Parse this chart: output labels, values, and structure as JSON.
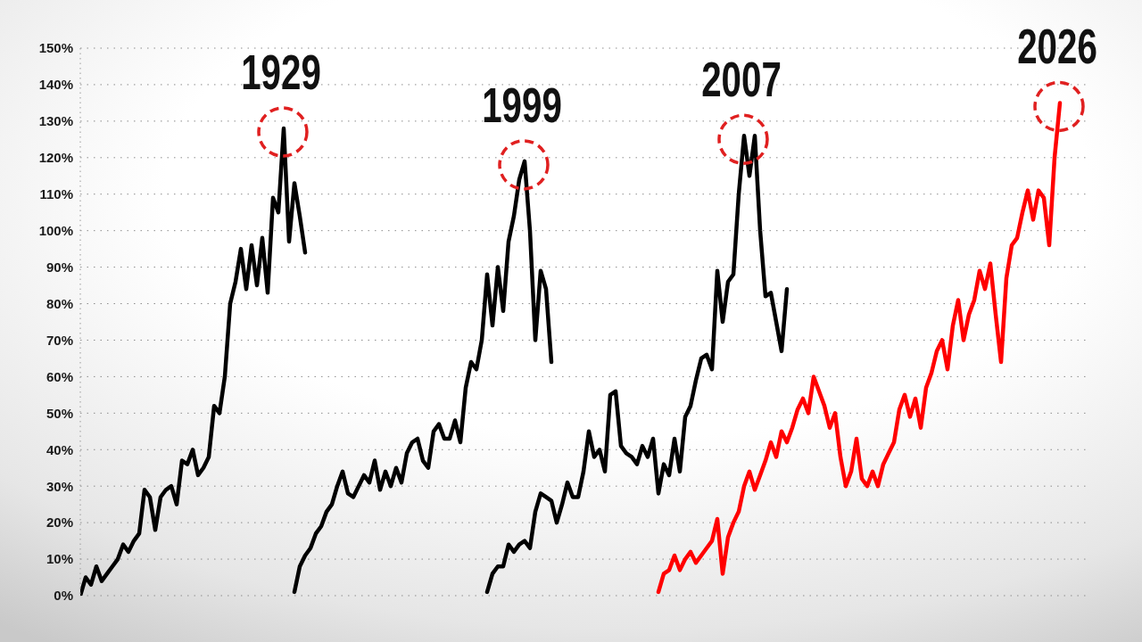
{
  "chart_data": {
    "type": "line",
    "categories": [
      null,
      null,
      null,
      null,
      null,
      null,
      null,
      null,
      null,
      null,
      null,
      null,
      null,
      null,
      null,
      null,
      null,
      null,
      null,
      null,
      null,
      null,
      null,
      null,
      null,
      null,
      null,
      null,
      null,
      null,
      null,
      null,
      null,
      null,
      null,
      null,
      null,
      null,
      null,
      null,
      null,
      null,
      null,
      null,
      null,
      null,
      null,
      null,
      null,
      null,
      null,
      null,
      null,
      null,
      null,
      null,
      null,
      null,
      null,
      null,
      null,
      null,
      null,
      null,
      null,
      null,
      null,
      null,
      null,
      null,
      null,
      null,
      null,
      null,
      null,
      null,
      null,
      null,
      null,
      null,
      null,
      null,
      null,
      null,
      null,
      null,
      null,
      null,
      null,
      null,
      null,
      null,
      null,
      null,
      null,
      null,
      null,
      null,
      null,
      null,
      null,
      null,
      null,
      null,
      null,
      null,
      null,
      null,
      null,
      null,
      null,
      null,
      null,
      null,
      null,
      null,
      null,
      null,
      null,
      null,
      null,
      null,
      null,
      null,
      null,
      null,
      null,
      null,
      null,
      null,
      null,
      null,
      null,
      null,
      null,
      null,
      null,
      null,
      null,
      null,
      null,
      null,
      null,
      null,
      null,
      null,
      null,
      null,
      null,
      null,
      null,
      null,
      null,
      null,
      null,
      null,
      null,
      null,
      null,
      null,
      null,
      null,
      null,
      null,
      null,
      null,
      null,
      null,
      null,
      null,
      null,
      null,
      null,
      null,
      null,
      null,
      null,
      null,
      null,
      null,
      null,
      null,
      null,
      null,
      null,
      null,
      null,
      null,
      null
    ],
    "series": [
      {
        "name": "1929",
        "color": "#000000",
        "values": [
          0,
          5,
          3,
          8,
          4,
          6,
          8,
          10,
          14,
          12,
          15,
          17,
          29,
          27,
          18,
          27,
          29,
          30,
          25,
          37,
          36,
          40,
          33,
          35,
          38,
          52,
          50,
          60,
          80,
          86,
          95,
          84,
          96,
          85,
          98,
          83,
          109,
          105,
          128,
          97,
          113,
          104,
          94,
          null,
          null,
          null,
          null,
          null,
          null,
          null,
          null,
          null,
          null,
          null,
          null,
          null,
          null,
          null,
          null,
          null,
          null,
          null,
          null,
          null,
          null,
          null,
          null,
          null,
          null,
          null,
          null,
          null,
          null,
          null,
          null,
          null,
          null,
          null,
          null,
          null,
          null,
          null,
          null,
          null,
          null,
          null,
          null,
          null,
          null,
          null,
          null,
          null,
          null,
          null,
          null,
          null,
          null,
          null,
          null,
          null,
          null,
          null,
          null,
          null,
          null,
          null,
          null,
          null,
          null,
          null,
          null,
          null,
          null,
          null,
          null,
          null,
          null,
          null,
          null,
          null,
          null,
          null,
          null,
          null,
          null,
          null,
          null,
          null,
          null,
          null,
          null,
          null,
          null,
          null,
          null,
          null,
          null,
          null,
          null,
          null,
          null,
          null,
          null,
          null,
          null,
          null,
          null,
          null,
          null,
          null,
          null,
          null,
          null,
          null,
          null,
          null,
          null,
          null,
          null,
          null,
          null,
          null,
          null,
          null,
          null,
          null,
          null,
          null,
          null,
          null,
          null,
          null,
          null,
          null,
          null,
          null,
          null,
          null,
          null,
          null,
          null,
          null,
          null,
          null,
          null,
          null,
          null,
          null,
          null
        ]
      },
      {
        "name": "1999",
        "color": "#000000",
        "values": [
          null,
          null,
          null,
          null,
          null,
          null,
          null,
          null,
          null,
          null,
          null,
          null,
          null,
          null,
          null,
          null,
          null,
          null,
          null,
          null,
          null,
          null,
          null,
          null,
          null,
          null,
          null,
          null,
          null,
          null,
          null,
          null,
          null,
          null,
          null,
          null,
          null,
          null,
          null,
          null,
          1,
          8,
          11,
          13,
          17,
          19,
          23,
          25,
          30,
          34,
          28,
          27,
          30,
          33,
          31,
          37,
          29,
          34,
          30,
          35,
          31,
          39,
          42,
          43,
          37,
          35,
          45,
          47,
          43,
          43,
          48,
          42,
          57,
          64,
          62,
          70,
          88,
          74,
          90,
          78,
          97,
          104,
          114,
          119,
          100,
          70,
          89,
          84,
          64,
          null,
          null,
          null,
          null,
          null,
          null,
          null,
          null,
          null,
          null,
          null,
          null,
          null,
          null,
          null,
          null,
          null,
          null,
          null,
          null,
          null,
          null,
          null,
          null,
          null,
          null,
          null,
          null,
          null,
          null,
          null,
          null,
          null,
          null,
          null,
          null,
          null,
          null,
          null,
          null,
          null,
          null,
          null,
          null,
          null,
          null,
          null,
          null,
          null,
          null,
          null,
          null,
          null,
          null,
          null,
          null,
          null,
          null,
          null,
          null,
          null,
          null,
          null,
          null,
          null,
          null,
          null,
          null,
          null,
          null,
          null,
          null,
          null,
          null,
          null,
          null,
          null,
          null,
          null,
          null,
          null,
          null,
          null,
          null,
          null,
          null,
          null,
          null,
          null,
          null,
          null,
          null,
          null,
          null,
          null,
          null,
          null,
          null,
          null,
          null
        ]
      },
      {
        "name": "2007",
        "color": "#000000",
        "values": [
          null,
          null,
          null,
          null,
          null,
          null,
          null,
          null,
          null,
          null,
          null,
          null,
          null,
          null,
          null,
          null,
          null,
          null,
          null,
          null,
          null,
          null,
          null,
          null,
          null,
          null,
          null,
          null,
          null,
          null,
          null,
          null,
          null,
          null,
          null,
          null,
          null,
          null,
          null,
          null,
          null,
          null,
          null,
          null,
          null,
          null,
          null,
          null,
          null,
          null,
          null,
          null,
          null,
          null,
          null,
          null,
          null,
          null,
          null,
          null,
          null,
          null,
          null,
          null,
          null,
          null,
          null,
          null,
          null,
          null,
          null,
          null,
          null,
          null,
          null,
          null,
          1,
          6,
          8,
          8,
          14,
          12,
          14,
          15,
          13,
          23,
          28,
          27,
          26,
          20,
          25,
          31,
          27,
          27,
          34,
          45,
          38,
          40,
          34,
          55,
          56,
          41,
          39,
          38,
          36,
          41,
          38,
          43,
          28,
          36,
          33,
          43,
          34,
          49,
          52,
          59,
          65,
          66,
          62,
          89,
          75,
          86,
          88,
          110,
          126,
          115,
          126,
          100,
          82,
          83,
          75,
          67,
          84,
          null,
          null,
          null,
          null,
          null,
          null,
          null,
          null,
          null,
          null,
          null,
          null,
          null,
          null,
          null,
          null,
          null,
          null,
          null,
          null,
          null,
          null,
          null,
          null,
          null,
          null,
          null,
          null,
          null,
          null,
          null,
          null,
          null,
          null,
          null,
          null,
          null,
          null,
          null,
          null,
          null,
          null,
          null,
          null,
          null,
          null,
          null,
          null,
          null,
          null,
          null,
          null,
          null,
          null,
          null,
          null
        ]
      },
      {
        "name": "2026",
        "color": "#ff0000",
        "values": [
          null,
          null,
          null,
          null,
          null,
          null,
          null,
          null,
          null,
          null,
          null,
          null,
          null,
          null,
          null,
          null,
          null,
          null,
          null,
          null,
          null,
          null,
          null,
          null,
          null,
          null,
          null,
          null,
          null,
          null,
          null,
          null,
          null,
          null,
          null,
          null,
          null,
          null,
          null,
          null,
          null,
          null,
          null,
          null,
          null,
          null,
          null,
          null,
          null,
          null,
          null,
          null,
          null,
          null,
          null,
          null,
          null,
          null,
          null,
          null,
          null,
          null,
          null,
          null,
          null,
          null,
          null,
          null,
          null,
          null,
          null,
          null,
          null,
          null,
          null,
          null,
          null,
          null,
          null,
          null,
          null,
          null,
          null,
          null,
          null,
          null,
          null,
          null,
          null,
          null,
          null,
          null,
          null,
          null,
          null,
          null,
          null,
          null,
          null,
          null,
          null,
          null,
          null,
          null,
          null,
          null,
          null,
          null,
          1,
          6,
          7,
          11,
          7,
          10,
          12,
          9,
          11,
          13,
          15,
          21,
          6,
          16,
          20,
          23,
          30,
          34,
          29,
          33,
          37,
          42,
          38,
          45,
          42,
          46,
          51,
          54,
          50,
          60,
          56,
          52,
          46,
          50,
          38,
          30,
          34,
          43,
          32,
          30,
          34,
          30,
          36,
          39,
          42,
          51,
          55,
          49,
          54,
          46,
          57,
          61,
          67,
          70,
          62,
          74,
          81,
          70,
          77,
          81,
          89,
          84,
          91,
          77,
          64,
          87,
          96,
          98,
          105,
          111,
          103,
          111,
          109,
          96,
          120,
          135,
          null,
          null,
          null,
          null,
          null
        ]
      }
    ],
    "ylim": [
      0,
      150
    ],
    "yticks": [
      {
        "value": 0,
        "label": "0%"
      },
      {
        "value": 10,
        "label": "10%"
      },
      {
        "value": 20,
        "label": "20%"
      },
      {
        "value": 30,
        "label": "30%"
      },
      {
        "value": 40,
        "label": "40%"
      },
      {
        "value": 50,
        "label": "50%"
      },
      {
        "value": 60,
        "label": "60%"
      },
      {
        "value": 70,
        "label": "70%"
      },
      {
        "value": 80,
        "label": "80%"
      },
      {
        "value": 90,
        "label": "90%"
      },
      {
        "value": 100,
        "label": "100%"
      },
      {
        "value": 110,
        "label": "110%"
      },
      {
        "value": 120,
        "label": "120%"
      },
      {
        "value": 130,
        "label": "130%"
      },
      {
        "value": 140,
        "label": "140%"
      },
      {
        "value": 150,
        "label": "150%"
      }
    ],
    "grid": "y"
  }
}
